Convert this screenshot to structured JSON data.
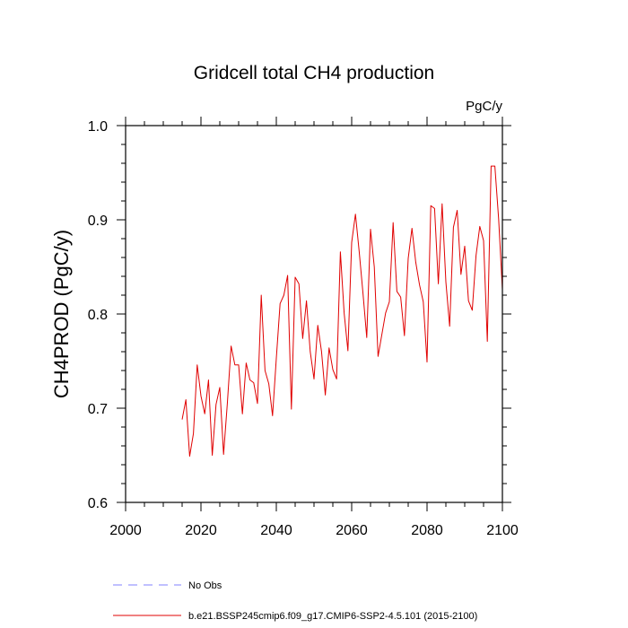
{
  "chart_data": {
    "type": "line",
    "title": "Gridcell total CH4 production",
    "units": "PgC/y",
    "xlabel": "",
    "ylabel": "CH4PROD  (PgC/y)",
    "xlim": [
      2000,
      2100
    ],
    "ylim": [
      0.6,
      1.0
    ],
    "x_ticks": [
      "2000",
      "2020",
      "2040",
      "2060",
      "2080",
      "2100"
    ],
    "y_ticks": [
      "0.6",
      "0.7",
      "0.8",
      "0.9",
      "1.0"
    ],
    "grid": false,
    "legend_position": "bottom",
    "series": [
      {
        "name": "No Obs",
        "color": "#8080ff",
        "dash": "dashed",
        "x": [],
        "values": []
      },
      {
        "name": "b.e21.BSSP245cmip6.f09_g17.CMIP6-SSP2-4.5.101 (2015-2100)",
        "color": "#e00000",
        "dash": "solid",
        "x": [
          2015,
          2016,
          2017,
          2018,
          2019,
          2020,
          2021,
          2022,
          2023,
          2024,
          2025,
          2026,
          2027,
          2028,
          2029,
          2030,
          2031,
          2032,
          2033,
          2034,
          2035,
          2036,
          2037,
          2038,
          2039,
          2040,
          2041,
          2042,
          2043,
          2044,
          2045,
          2046,
          2047,
          2048,
          2049,
          2050,
          2051,
          2052,
          2053,
          2054,
          2055,
          2056,
          2057,
          2058,
          2059,
          2060,
          2061,
          2062,
          2063,
          2064,
          2065,
          2066,
          2067,
          2068,
          2069,
          2070,
          2071,
          2072,
          2073,
          2074,
          2075,
          2076,
          2077,
          2078,
          2079,
          2080,
          2081,
          2082,
          2083,
          2084,
          2085,
          2086,
          2087,
          2088,
          2089,
          2090,
          2091,
          2092,
          2093,
          2094,
          2095,
          2096,
          2097,
          2098,
          2099,
          2100
        ],
        "values": [
          0.688,
          0.709,
          0.649,
          0.673,
          0.746,
          0.713,
          0.694,
          0.73,
          0.65,
          0.704,
          0.722,
          0.651,
          0.705,
          0.766,
          0.746,
          0.746,
          0.694,
          0.748,
          0.73,
          0.727,
          0.705,
          0.82,
          0.74,
          0.726,
          0.692,
          0.753,
          0.811,
          0.82,
          0.841,
          0.699,
          0.839,
          0.832,
          0.774,
          0.814,
          0.76,
          0.731,
          0.788,
          0.76,
          0.714,
          0.764,
          0.741,
          0.731,
          0.866,
          0.801,
          0.761,
          0.876,
          0.906,
          0.866,
          0.822,
          0.775,
          0.89,
          0.85,
          0.755,
          0.778,
          0.801,
          0.813,
          0.897,
          0.824,
          0.818,
          0.777,
          0.859,
          0.891,
          0.855,
          0.831,
          0.813,
          0.749,
          0.915,
          0.912,
          0.832,
          0.917,
          0.834,
          0.787,
          0.892,
          0.91,
          0.842,
          0.872,
          0.814,
          0.804,
          0.862,
          0.893,
          0.878,
          0.771,
          0.957,
          0.957,
          0.901,
          0.826
        ]
      }
    ]
  }
}
